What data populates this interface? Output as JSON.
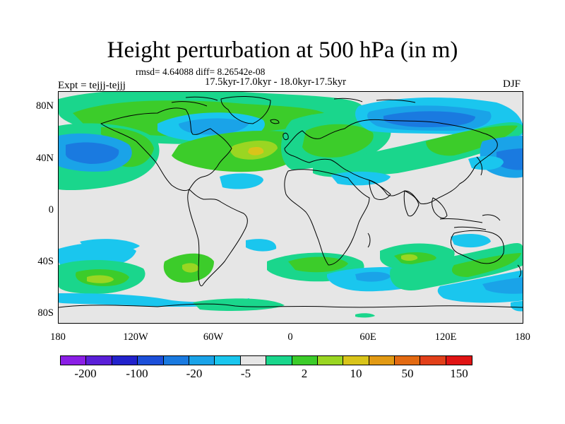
{
  "title": "Height perturbation at 500 hPa (in m)",
  "stats": "rmsd= 4.64088 diff= 8.26542e-08",
  "period": "17.5kyr-17.0kyr - 18.0kyr-17.5kyr",
  "expt": "Expt = tejjj-tejjj",
  "season": "DJF",
  "lat_labels": [
    "80N",
    "40N",
    "0",
    "40S",
    "80S"
  ],
  "lon_labels": [
    "180",
    "120W",
    "60W",
    "0",
    "60E",
    "120E",
    "180"
  ],
  "colorbar": {
    "colors": [
      "#8b1fe6",
      "#5a1fd8",
      "#2222cc",
      "#1c4fd9",
      "#1a7ae0",
      "#1aa3e8",
      "#1ac6ee",
      "#e6e6e6",
      "#1ad68c",
      "#3ccc2a",
      "#9ad622",
      "#d9c41a",
      "#e29a14",
      "#e36a12",
      "#e2401a",
      "#e01414"
    ],
    "labels": [
      "-200",
      "-100",
      "-20",
      "-5",
      "2",
      "10",
      "50",
      "150"
    ]
  },
  "colors": {
    "zero": "#e6e6e6",
    "light_neg": "#1ac6ee",
    "mid_neg": "#1aa3e8",
    "strong_neg": "#1a7ae0",
    "light_pos": "#1ad68c",
    "mid_pos": "#3ccc2a",
    "strong_pos": "#9ad622",
    "peak_pos": "#d9c41a"
  }
}
